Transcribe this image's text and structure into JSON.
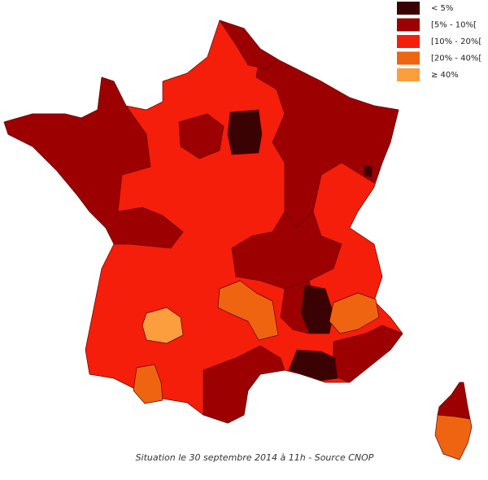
{
  "legend": {
    "items": [
      {
        "label": "< 5%",
        "color": "#3a0202"
      },
      {
        "label": "[5% - 10%[",
        "color": "#9c0000"
      },
      {
        "label": "[10% - 20%[",
        "color": "#f51e0a"
      },
      {
        "label": "[20% - 40%[",
        "color": "#ee6410"
      },
      {
        "label": "≥ 40%",
        "color": "#fc9d3e"
      }
    ]
  },
  "caption": "Situation le 30 septembre 2014 à 11h - Source CNOP"
}
